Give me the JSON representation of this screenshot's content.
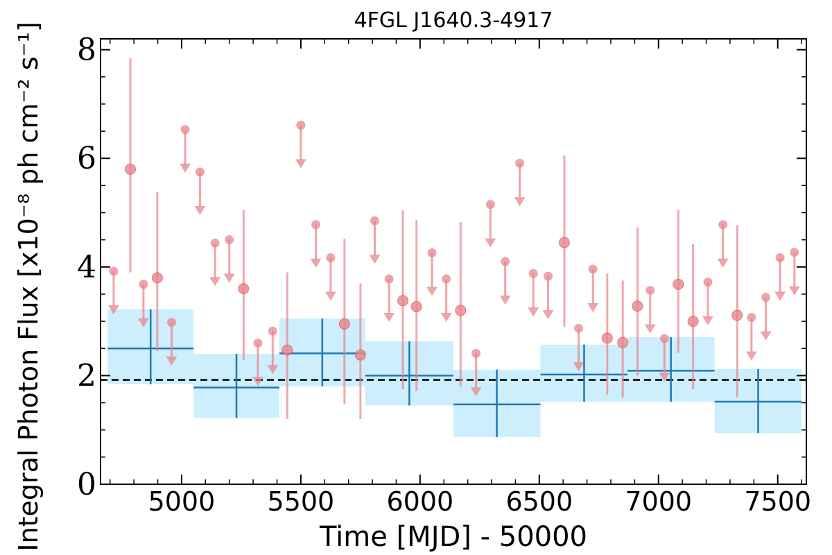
{
  "chart_data": {
    "type": "scatter",
    "title": "4FGL J1640.3-4917",
    "xlabel": "Time [MJD] - 50000",
    "ylabel": "Integral Photon Flux [x10⁻⁸ ph cm⁻² s⁻¹]",
    "xlim": [
      4660,
      7620
    ],
    "ylim": [
      0,
      8.2
    ],
    "xticks": [
      5000,
      5500,
      6000,
      6500,
      7000,
      7500
    ],
    "yticks": [
      0,
      2,
      4,
      6,
      8
    ],
    "mean_flux": 1.92,
    "colors": {
      "points": "#e8868d",
      "bins": "#1f77b4",
      "bin_fill": "#cdeefc",
      "mean_line": "#000000"
    },
    "detections": [
      {
        "x": 4785,
        "y": 5.8,
        "yerr_low": 3.9,
        "yerr_high": 7.85
      },
      {
        "x": 4898,
        "y": 3.8,
        "yerr_low": 2.45,
        "yerr_high": 5.38
      },
      {
        "x": 5260,
        "y": 3.6,
        "yerr_low": 2.28,
        "yerr_high": 5.05
      },
      {
        "x": 5443,
        "y": 2.47,
        "yerr_low": 1.2,
        "yerr_high": 3.9
      },
      {
        "x": 5683,
        "y": 2.95,
        "yerr_low": 1.47,
        "yerr_high": 4.52
      },
      {
        "x": 5750,
        "y": 2.38,
        "yerr_low": 1.2,
        "yerr_high": 3.7
      },
      {
        "x": 5928,
        "y": 3.38,
        "yerr_low": 1.75,
        "yerr_high": 5.04
      },
      {
        "x": 5985,
        "y": 3.27,
        "yerr_low": 1.72,
        "yerr_high": 4.86
      },
      {
        "x": 6170,
        "y": 3.2,
        "yerr_low": 1.8,
        "yerr_high": 4.83
      },
      {
        "x": 6605,
        "y": 4.45,
        "yerr_low": 2.9,
        "yerr_high": 6.05
      },
      {
        "x": 6785,
        "y": 2.69,
        "yerr_low": 1.65,
        "yerr_high": 3.88
      },
      {
        "x": 6850,
        "y": 2.61,
        "yerr_low": 1.6,
        "yerr_high": 3.75
      },
      {
        "x": 6912,
        "y": 3.28,
        "yerr_low": 2.0,
        "yerr_high": 4.73
      },
      {
        "x": 7083,
        "y": 3.68,
        "yerr_low": 2.42,
        "yerr_high": 5.05
      },
      {
        "x": 7145,
        "y": 3.0,
        "yerr_low": 1.75,
        "yerr_high": 4.42
      },
      {
        "x": 7330,
        "y": 3.11,
        "yerr_low": 1.6,
        "yerr_high": 4.77
      }
    ],
    "upper_limits": [
      {
        "x": 4715,
        "y": 3.92
      },
      {
        "x": 4840,
        "y": 3.68
      },
      {
        "x": 4958,
        "y": 2.98
      },
      {
        "x": 5015,
        "y": 6.53
      },
      {
        "x": 5077,
        "y": 5.75
      },
      {
        "x": 5140,
        "y": 4.44
      },
      {
        "x": 5200,
        "y": 4.5
      },
      {
        "x": 5320,
        "y": 2.6
      },
      {
        "x": 5382,
        "y": 2.82
      },
      {
        "x": 5500,
        "y": 6.61
      },
      {
        "x": 5563,
        "y": 4.78
      },
      {
        "x": 5625,
        "y": 4.17
      },
      {
        "x": 5810,
        "y": 4.85
      },
      {
        "x": 5870,
        "y": 3.78
      },
      {
        "x": 6050,
        "y": 4.26
      },
      {
        "x": 6110,
        "y": 3.78
      },
      {
        "x": 6235,
        "y": 2.41
      },
      {
        "x": 6295,
        "y": 5.15
      },
      {
        "x": 6357,
        "y": 4.1
      },
      {
        "x": 6418,
        "y": 5.91
      },
      {
        "x": 6475,
        "y": 3.88
      },
      {
        "x": 6537,
        "y": 3.83
      },
      {
        "x": 6665,
        "y": 2.87
      },
      {
        "x": 6725,
        "y": 3.96
      },
      {
        "x": 6965,
        "y": 3.57
      },
      {
        "x": 7025,
        "y": 2.68
      },
      {
        "x": 7207,
        "y": 3.72
      },
      {
        "x": 7270,
        "y": 4.78
      },
      {
        "x": 7390,
        "y": 3.07
      },
      {
        "x": 7450,
        "y": 3.44
      },
      {
        "x": 7510,
        "y": 4.17
      },
      {
        "x": 7570,
        "y": 4.27
      }
    ],
    "bins": [
      {
        "x_start": 4690,
        "x_end": 5050,
        "x_center": 4870,
        "y": 2.5,
        "y_low": 1.84,
        "y_high": 3.22
      },
      {
        "x_start": 5050,
        "x_end": 5410,
        "x_center": 5230,
        "y": 1.78,
        "y_low": 1.22,
        "y_high": 2.4
      },
      {
        "x_start": 5410,
        "x_end": 5770,
        "x_center": 5590,
        "y": 2.41,
        "y_low": 1.8,
        "y_high": 3.05
      },
      {
        "x_start": 5770,
        "x_end": 6140,
        "x_center": 5955,
        "y": 2.0,
        "y_low": 1.45,
        "y_high": 2.63
      },
      {
        "x_start": 6140,
        "x_end": 6505,
        "x_center": 6322,
        "y": 1.47,
        "y_low": 0.87,
        "y_high": 2.11
      },
      {
        "x_start": 6505,
        "x_end": 6870,
        "x_center": 6688,
        "y": 2.02,
        "y_low": 1.52,
        "y_high": 2.57
      },
      {
        "x_start": 6870,
        "x_end": 7235,
        "x_center": 7052,
        "y": 2.09,
        "y_low": 1.52,
        "y_high": 2.71
      },
      {
        "x_start": 7235,
        "x_end": 7600,
        "x_center": 7418,
        "y": 1.52,
        "y_low": 0.94,
        "y_high": 2.12
      }
    ]
  }
}
